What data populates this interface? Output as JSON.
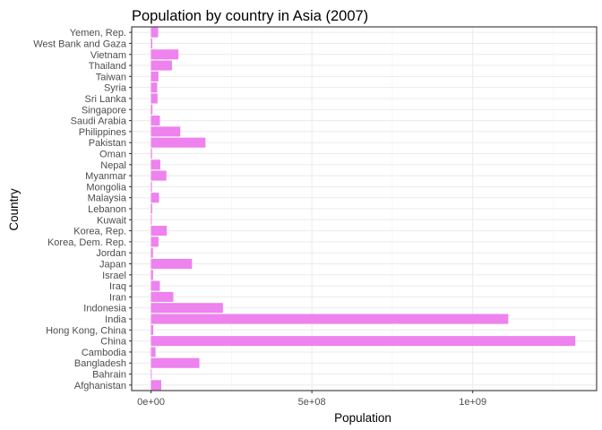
{
  "chart_data": {
    "type": "bar",
    "orientation": "horizontal",
    "title": "Population by country in Asia (2007)",
    "xlabel": "Population",
    "ylabel": "Country",
    "xlim": [
      -60000000.0,
      1385000000.0
    ],
    "x_ticks": [
      0,
      500000000,
      1000000000
    ],
    "x_tick_labels": [
      "0e+00",
      "5e+08",
      "1e+09"
    ],
    "grid": true,
    "legend": "none",
    "bar_color": "#ee82ee",
    "categories": [
      "Afghanistan",
      "Bahrain",
      "Bangladesh",
      "Cambodia",
      "China",
      "Hong Kong, China",
      "India",
      "Indonesia",
      "Iran",
      "Iraq",
      "Israel",
      "Japan",
      "Jordan",
      "Korea, Dem. Rep.",
      "Korea, Rep.",
      "Kuwait",
      "Lebanon",
      "Malaysia",
      "Mongolia",
      "Myanmar",
      "Nepal",
      "Oman",
      "Pakistan",
      "Philippines",
      "Saudi Arabia",
      "Singapore",
      "Sri Lanka",
      "Syria",
      "Taiwan",
      "Thailand",
      "Vietnam",
      "West Bank and Gaza",
      "Yemen, Rep."
    ],
    "values": [
      31889923,
      708573,
      150448339,
      14131858,
      1318683096,
      6980412,
      1110396331,
      223547000,
      69453570,
      27499638,
      6426679,
      127467972,
      6053193,
      23301725,
      49044790,
      2505559,
      3921278,
      24821286,
      2874127,
      47761980,
      28901790,
      3204897,
      169270617,
      91077287,
      27601038,
      4553009,
      20378239,
      19314747,
      23174294,
      65068149,
      85262356,
      4018332,
      22211743
    ]
  }
}
